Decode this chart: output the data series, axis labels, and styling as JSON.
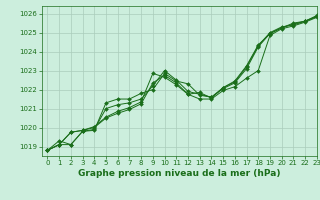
{
  "xlabel": "Graphe pression niveau de la mer (hPa)",
  "background_color": "#cceedd",
  "grid_color": "#aaccbb",
  "line_color": "#1a6e1a",
  "xlim": [
    -0.5,
    23
  ],
  "ylim": [
    1018.5,
    1026.4
  ],
  "yticks": [
    1019,
    1020,
    1021,
    1022,
    1023,
    1024,
    1025,
    1026
  ],
  "ylabels": [
    "1019",
    "1020",
    "1021",
    "1022",
    "1023",
    "1024",
    "1025",
    "1026"
  ],
  "xticks": [
    0,
    1,
    2,
    3,
    4,
    5,
    6,
    7,
    8,
    9,
    10,
    11,
    12,
    13,
    14,
    15,
    16,
    17,
    18,
    19,
    20,
    21,
    22,
    23
  ],
  "series": [
    [
      1018.8,
      1019.3,
      1019.1,
      1019.8,
      1019.85,
      1021.3,
      1021.5,
      1021.5,
      1021.8,
      1022.0,
      1022.85,
      1022.45,
      1022.3,
      1021.7,
      1021.6,
      1022.1,
      1022.4,
      1023.2,
      1024.3,
      1025.0,
      1025.3,
      1025.4,
      1025.6,
      1025.9
    ],
    [
      1018.8,
      1019.1,
      1019.1,
      1019.8,
      1019.9,
      1021.0,
      1021.2,
      1021.3,
      1021.5,
      1022.2,
      1023.0,
      1022.5,
      1021.9,
      1021.75,
      1021.6,
      1022.05,
      1022.35,
      1023.1,
      1024.25,
      1024.95,
      1025.25,
      1025.45,
      1025.6,
      1025.85
    ],
    [
      1018.8,
      1019.1,
      1019.75,
      1019.85,
      1020.0,
      1020.5,
      1020.75,
      1020.95,
      1021.25,
      1022.35,
      1022.75,
      1022.35,
      1021.75,
      1021.85,
      1021.55,
      1022.1,
      1022.45,
      1023.25,
      1024.35,
      1024.95,
      1025.25,
      1025.5,
      1025.6,
      1025.85
    ],
    [
      1018.8,
      1019.1,
      1019.75,
      1019.85,
      1020.05,
      1020.55,
      1020.85,
      1021.05,
      1021.35,
      1022.85,
      1022.65,
      1022.25,
      1021.75,
      1021.5,
      1021.5,
      1021.95,
      1022.15,
      1022.6,
      1023.0,
      1024.85,
      1025.2,
      1025.35,
      1025.55,
      1025.8
    ]
  ],
  "marker": "D",
  "markersize": 2.0,
  "linewidth": 0.7,
  "xlabel_fontsize": 6.5,
  "tick_fontsize": 5.0,
  "xlabel_fontweight": "bold"
}
